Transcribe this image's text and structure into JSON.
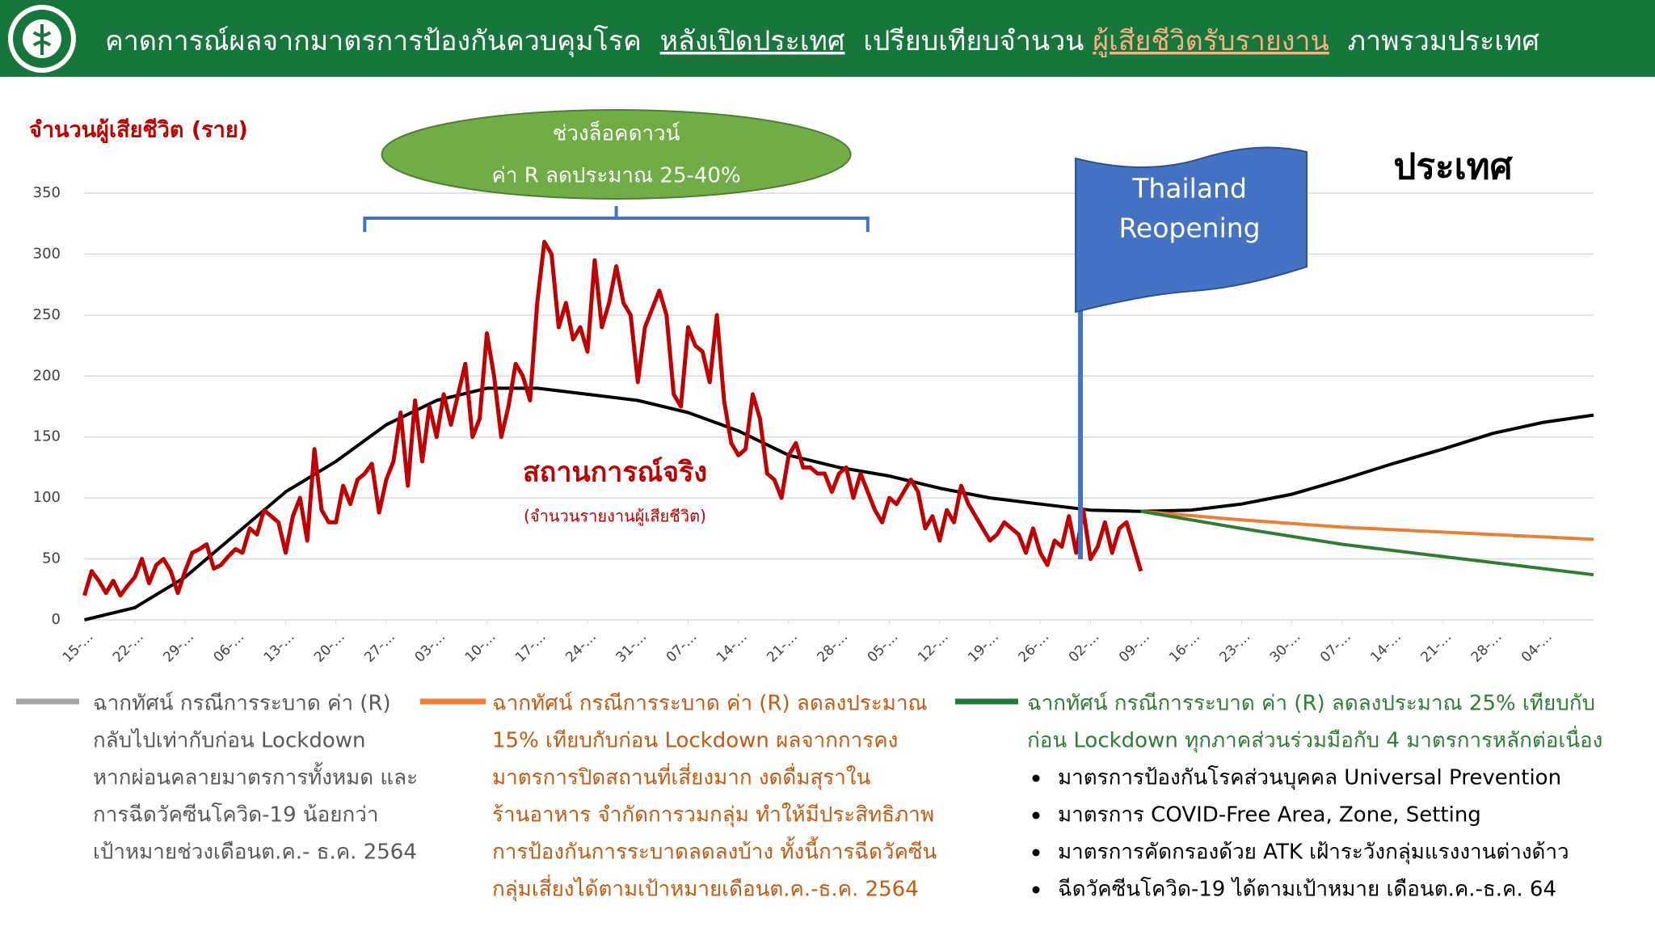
{
  "chart_data": {
    "type": "line",
    "title_parts": [
      "คาดการณ์ผลจากมาตรการป้องกันควบคุมโรค",
      "หลังเปิดประเทศ",
      "เปรียบเทียบจำนวน",
      "ผู้เสียชีวิตรับรายงาน",
      "ภาพรวมประเทศ"
    ],
    "region": "ประเทศ",
    "y_label": "จำนวนผู้เสียชีวิต (ราย)",
    "ylim": [
      0,
      350
    ],
    "yticks": [
      0,
      50,
      100,
      150,
      200,
      250,
      300,
      350
    ],
    "xlim": [
      0,
      210
    ],
    "xticks": [
      {
        "value": 0,
        "label": "15-…"
      },
      {
        "value": 7,
        "label": "22-…"
      },
      {
        "value": 14,
        "label": "29-…"
      },
      {
        "value": 21,
        "label": "06-…"
      },
      {
        "value": 28,
        "label": "13-…"
      },
      {
        "value": 35,
        "label": "20-…"
      },
      {
        "value": 42,
        "label": "27-…"
      },
      {
        "value": 49,
        "label": "03-…"
      },
      {
        "value": 56,
        "label": "10-…"
      },
      {
        "value": 63,
        "label": "17-…"
      },
      {
        "value": 70,
        "label": "24-…"
      },
      {
        "value": 77,
        "label": "31-…"
      },
      {
        "value": 84,
        "label": "07-…"
      },
      {
        "value": 91,
        "label": "14-…"
      },
      {
        "value": 98,
        "label": "21-…"
      },
      {
        "value": 105,
        "label": "28-…"
      },
      {
        "value": 112,
        "label": "05-…"
      },
      {
        "value": 119,
        "label": "12-…"
      },
      {
        "value": 126,
        "label": "19-…"
      },
      {
        "value": 133,
        "label": "26-…"
      },
      {
        "value": 140,
        "label": "02-…"
      },
      {
        "value": 147,
        "label": "09-…"
      },
      {
        "value": 154,
        "label": "16-…"
      },
      {
        "value": 161,
        "label": "23-…"
      },
      {
        "value": 168,
        "label": "30-…"
      },
      {
        "value": 175,
        "label": "07-…"
      },
      {
        "value": 182,
        "label": "14-…"
      },
      {
        "value": 189,
        "label": "21-…"
      },
      {
        "value": 196,
        "label": "28-…"
      },
      {
        "value": 203,
        "label": "04-…"
      }
    ],
    "grid": true,
    "lockdown_note": [
      "ช่วงล็อคดาวน์",
      "ค่า R ลดประมาณ 25-40%"
    ],
    "lockdown_range": [
      39,
      109
    ],
    "reopening_flag": [
      "Thailand",
      "Reopening"
    ],
    "reopening_day": 138.6,
    "series": [
      {
        "name": "สถานการณ์จริง",
        "note": "(จำนวนรายงานผู้เสียชีวิต)",
        "color": "#c00000",
        "x": [
          0,
          1,
          2,
          3,
          4,
          5,
          6,
          7,
          8,
          9,
          10,
          11,
          12,
          13,
          14,
          15,
          16,
          17,
          18,
          19,
          20,
          21,
          22,
          23,
          24,
          25,
          26,
          27,
          28,
          29,
          30,
          31,
          32,
          33,
          34,
          35,
          36,
          37,
          38,
          39,
          40,
          41,
          42,
          43,
          44,
          45,
          46,
          47,
          48,
          49,
          50,
          51,
          52,
          53,
          54,
          55,
          56,
          57,
          58,
          59,
          60,
          61,
          62,
          63,
          64,
          65,
          66,
          67,
          68,
          69,
          70,
          71,
          72,
          73,
          74,
          75,
          76,
          77,
          78,
          79,
          80,
          81,
          82,
          83,
          84,
          85,
          86,
          87,
          88,
          89,
          90,
          91,
          92,
          93,
          94,
          95,
          96,
          97,
          98,
          99,
          100,
          101,
          102,
          103,
          104,
          105,
          106,
          107,
          108,
          109,
          110,
          111,
          112,
          113,
          114,
          115,
          116,
          117,
          118,
          119,
          120,
          121,
          122,
          123,
          124,
          125,
          126,
          127,
          128,
          129,
          130,
          131,
          132,
          133,
          134,
          135,
          136,
          137,
          138,
          139,
          140,
          141,
          142,
          143,
          144,
          145,
          146,
          147
        ],
        "values": [
          20,
          40,
          32,
          22,
          32,
          20,
          28,
          35,
          50,
          30,
          45,
          50,
          40,
          22,
          40,
          55,
          58,
          62,
          42,
          45,
          52,
          58,
          55,
          75,
          70,
          90,
          85,
          80,
          55,
          85,
          100,
          65,
          140,
          90,
          80,
          80,
          110,
          95,
          115,
          120,
          128,
          88,
          115,
          130,
          170,
          110,
          180,
          130,
          175,
          150,
          185,
          160,
          185,
          210,
          150,
          165,
          235,
          200,
          150,
          175,
          210,
          200,
          180,
          260,
          310,
          300,
          240,
          260,
          230,
          240,
          220,
          295,
          240,
          260,
          290,
          260,
          250,
          195,
          240,
          255,
          270,
          250,
          185,
          175,
          240,
          225,
          220,
          195,
          250,
          180,
          145,
          135,
          140,
          185,
          165,
          120,
          115,
          100,
          135,
          145,
          125,
          125,
          120,
          120,
          105,
          120,
          125,
          100,
          120,
          105,
          90,
          80,
          100,
          95,
          105,
          115,
          105,
          75,
          85,
          65,
          90,
          80,
          110,
          95,
          85,
          75,
          65,
          70,
          80,
          75,
          70,
          55,
          75,
          55,
          45,
          65,
          60,
          85,
          55,
          90,
          50,
          60,
          80,
          55,
          75,
          80,
          60,
          40
        ]
      },
      {
        "name": "ฉากทัศน์ กรณีการระบาด ค่า (R)",
        "color": "#000000",
        "legend_color": "#a6a6a6",
        "text_color": "#595959",
        "legend_lines": [
          "ฉากทัศน์ กรณีการระบาด ค่า (R)",
          "กลับไปเท่ากับก่อน Lockdown",
          "หากผ่อนคลายมาตรการทั้งหมด และ",
          "การฉีดวัคซีนโควิด-19 น้อยกว่า",
          "เป้าหมายช่วงเดือนต.ค.- ธ.ค. 2564"
        ],
        "x": [
          0,
          7,
          14,
          21,
          28,
          35,
          42,
          49,
          56,
          63,
          70,
          77,
          84,
          91,
          98,
          105,
          112,
          119,
          126,
          133,
          140,
          147,
          154,
          161,
          168,
          175,
          182,
          189,
          196,
          203,
          210
        ],
        "values": [
          0,
          10,
          35,
          70,
          105,
          130,
          160,
          180,
          190,
          190,
          185,
          180,
          170,
          155,
          135,
          125,
          118,
          108,
          100,
          95,
          90,
          89,
          90,
          95,
          103,
          115,
          128,
          140,
          153,
          162,
          168
        ]
      },
      {
        "name": "ฉากทัศน์ กรณีการระบาด ค่า (R) ลดลงประมาณ",
        "color": "#ed7d31",
        "legend_color": "#ed7d31",
        "text_color": "#c55a11",
        "legend_lines": [
          "ฉากทัศน์ กรณีการระบาด ค่า (R) ลดลงประมาณ",
          "15% เทียบกับก่อน Lockdown ผลจากการคง",
          "มาตรการปิดสถานที่เสี่ยงมาก งดดื่มสุราใน",
          "ร้านอาหาร จำกัดการวมกลุ่ม ทำให้มีประสิทธิภาพ",
          "การป้องกันการระบาดลดลงบ้าง ทั้งนี้การฉีดวัคซีน",
          "กลุ่มเสี่ยงได้ตามเป้าหมายเดือนต.ค.-ธ.ค. 2564"
        ],
        "x": [
          147,
          161,
          175,
          189,
          203,
          210
        ],
        "values": [
          89,
          82,
          76,
          72,
          68,
          66
        ]
      },
      {
        "name": "ฉากทัศน์ กรณีการระบาด ค่า (R) ลดลงประมาณ 25% เทียบกับ",
        "color": "#2e7d32",
        "legend_color": "#1f7a36",
        "text_color": "#2e7d32",
        "legend_lines": [
          "ฉากทัศน์ กรณีการระบาด ค่า (R) ลดลงประมาณ 25% เทียบกับ",
          "ก่อน Lockdown ทุกภาคส่วนร่วมมือกับ 4 มาตรการหลักต่อเนื่อง"
        ],
        "bullets": [
          "มาตรการป้องกันโรคส่วนบุคคล Universal Prevention",
          "มาตรการ COVID-Free Area, Zone, Setting",
          "มาตรการคัดกรองด้วย ATK เฝ้าระวังกลุ่มแรงงานต่างด้าว",
          "ฉีดวัคซีนโควิด-19 ได้ตามเป้าหมาย เดือนต.ค.-ธ.ค. 64"
        ],
        "x": [
          147,
          161,
          175,
          189,
          203,
          210
        ],
        "values": [
          89,
          75,
          62,
          52,
          42,
          37
        ]
      }
    ]
  }
}
